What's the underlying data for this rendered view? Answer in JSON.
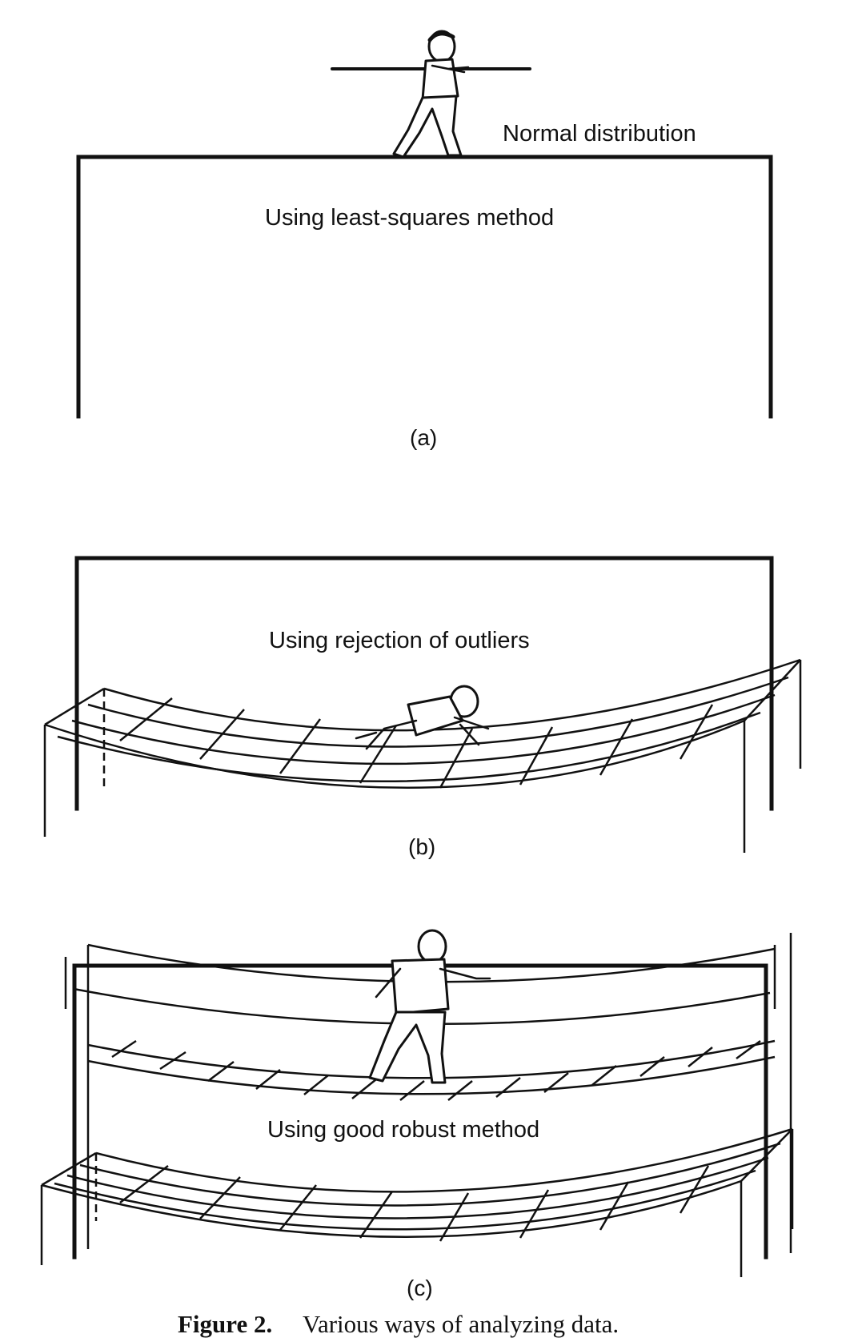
{
  "panel_a": {
    "top_label": "Normal distribution",
    "method_label": "Using least-squares method",
    "sub_label": "(a)"
  },
  "panel_b": {
    "method_label": "Using rejection of outliers",
    "sub_label": "(b)"
  },
  "panel_c": {
    "method_label": "Using good robust method",
    "sub_label": "(c)"
  },
  "caption": {
    "number": "Figure 2.",
    "text": "Various ways of analyzing data."
  }
}
